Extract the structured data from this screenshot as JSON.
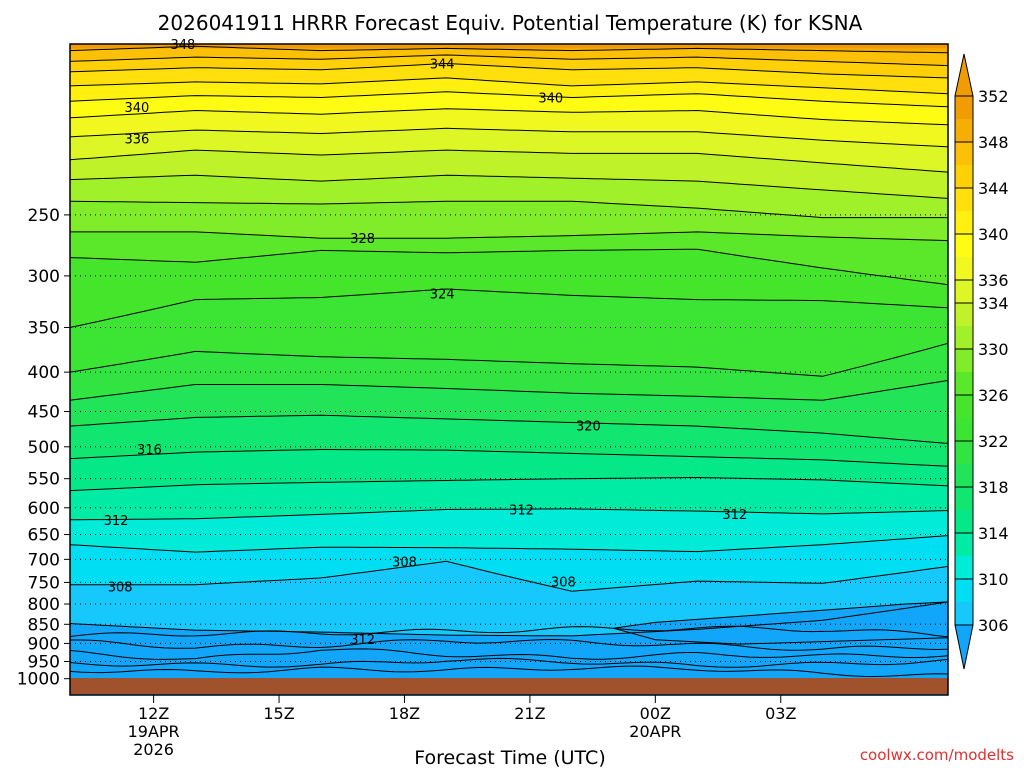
{
  "chart_data": {
    "type": "heatmap",
    "title": "2026041911 HRRR Forecast Equiv. Potential Temperature (K) for KSNA",
    "xlabel": "Forecast Time (UTC)",
    "ylabel": "",
    "credit": "coolwx.com/modelts",
    "x_range_hours": [
      -2,
      19
    ],
    "x_ticks": [
      {
        "hour": 0,
        "label": "12Z",
        "sub": [
          "19APR",
          "2026"
        ]
      },
      {
        "hour": 3,
        "label": "15Z",
        "sub": []
      },
      {
        "hour": 6,
        "label": "18Z",
        "sub": []
      },
      {
        "hour": 9,
        "label": "21Z",
        "sub": []
      },
      {
        "hour": 12,
        "label": "00Z",
        "sub": [
          "20APR"
        ]
      },
      {
        "hour": 15,
        "label": "03Z",
        "sub": []
      }
    ],
    "y_axis": {
      "scale": "log-pressure",
      "units": "hPa",
      "top": 150,
      "bottom": 1050,
      "ticks": [
        250,
        300,
        350,
        400,
        450,
        500,
        550,
        600,
        650,
        700,
        750,
        800,
        850,
        900,
        950,
        1000
      ]
    },
    "colorbar": {
      "ticks": [
        306,
        310,
        314,
        318,
        322,
        326,
        330,
        334,
        336,
        340,
        344,
        348,
        352
      ],
      "levels": [
        306,
        308,
        310,
        312,
        314,
        316,
        318,
        320,
        322,
        324,
        326,
        328,
        330,
        332,
        334,
        336,
        338,
        340,
        342,
        344,
        346,
        348,
        350,
        352
      ],
      "colors": [
        "#12a6fb",
        "#16c8fc",
        "#00def4",
        "#00ecd8",
        "#00eca4",
        "#04e888",
        "#11e670",
        "#22e458",
        "#31e442",
        "#3ce534",
        "#45e52c",
        "#5ce82a",
        "#80ec2a",
        "#a0f02a",
        "#c0f22a",
        "#dcf626",
        "#f0f820",
        "#fffc14",
        "#fff010",
        "#ffe00c",
        "#ffd008",
        "#fcc006",
        "#f6ae04",
        "#f09c02"
      ]
    },
    "ground_band_color": "#a0522d",
    "contour_label_values": [
      {
        "value": 348,
        "hour": 0.7,
        "p": 150
      },
      {
        "value": 344,
        "hour": 6.9,
        "p": 159
      },
      {
        "value": 340,
        "hour": -0.4,
        "p": 181
      },
      {
        "value": 340,
        "hour": 9.5,
        "p": 176
      },
      {
        "value": 336,
        "hour": -0.4,
        "p": 199
      },
      {
        "value": 328,
        "hour": 5.0,
        "p": 268
      },
      {
        "value": 324,
        "hour": 6.9,
        "p": 316
      },
      {
        "value": 320,
        "hour": 10.4,
        "p": 469
      },
      {
        "value": 316,
        "hour": -0.1,
        "p": 503
      },
      {
        "value": 312,
        "hour": -0.9,
        "p": 622
      },
      {
        "value": 312,
        "hour": 8.8,
        "p": 603
      },
      {
        "value": 312,
        "hour": 13.9,
        "p": 611
      },
      {
        "value": 308,
        "hour": -0.8,
        "p": 759
      },
      {
        "value": 308,
        "hour": 6.0,
        "p": 704
      },
      {
        "value": 308,
        "hour": 9.8,
        "p": 748
      },
      {
        "value": 312,
        "hour": 5.0,
        "p": 888
      }
    ]
  }
}
